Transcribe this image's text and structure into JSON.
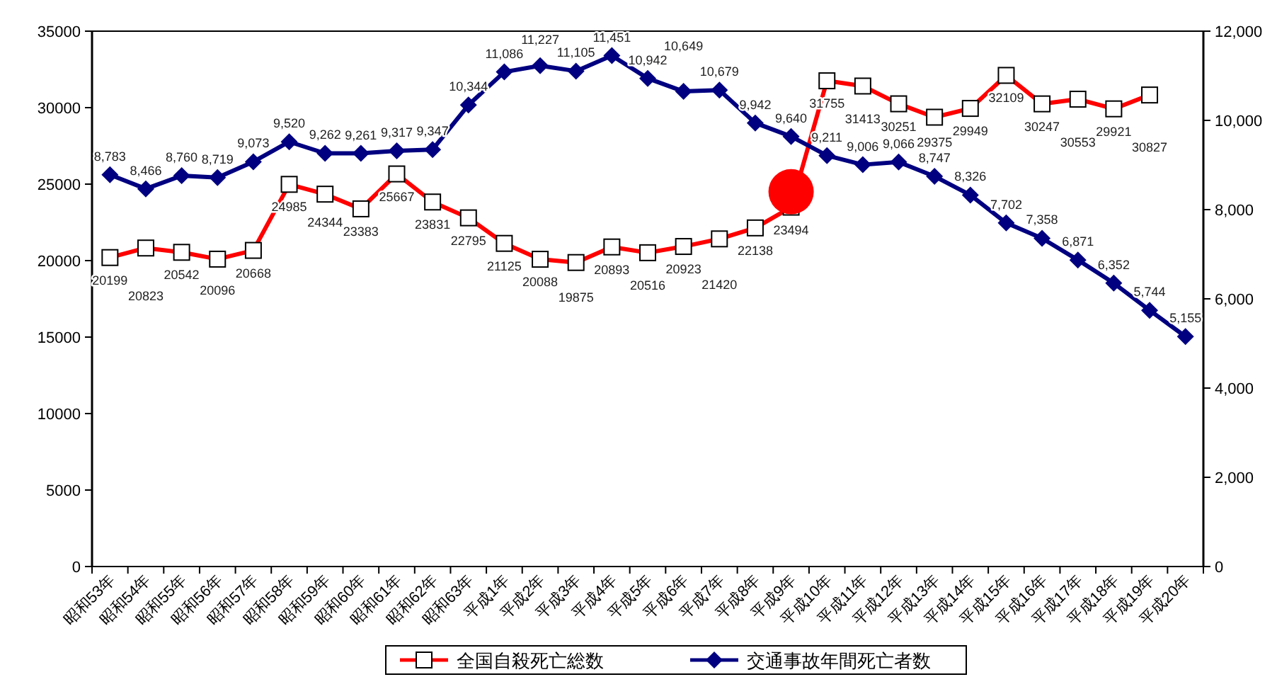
{
  "chart_data": {
    "type": "line",
    "categories": [
      "昭和53年",
      "昭和54年",
      "昭和55年",
      "昭和56年",
      "昭和57年",
      "昭和58年",
      "昭和59年",
      "昭和60年",
      "昭和61年",
      "昭和62年",
      "昭和63年",
      "平成1年",
      "平成2年",
      "平成3年",
      "平成4年",
      "平成5年",
      "平成6年",
      "平成7年",
      "平成8年",
      "平成9年",
      "平成10年",
      "平成11年",
      "平成12年",
      "平成13年",
      "平成14年",
      "平成15年",
      "平成16年",
      "平成17年",
      "平成18年",
      "平成19年",
      "平成20年"
    ],
    "series": [
      {
        "name": "全国自殺死亡総数",
        "color": "#ff0000",
        "axis": "y",
        "marker": "square",
        "values": [
          20199,
          20823,
          20542,
          20096,
          20668,
          24985,
          24344,
          23383,
          25667,
          23831,
          22795,
          21125,
          20088,
          19875,
          20893,
          20516,
          20923,
          21420,
          22138,
          23494,
          31755,
          31413,
          30251,
          29375,
          29949,
          32109,
          30247,
          30553,
          29921,
          30827,
          null
        ],
        "value_labels": [
          "20199",
          "20823",
          "20542",
          "20096",
          "20668",
          "24985",
          "24344",
          "23383",
          "25667",
          "23831",
          "22795",
          "21125",
          "20088",
          "19875",
          "20893",
          "20516",
          "20923",
          "21420",
          "22138",
          "23494",
          "31755",
          "31413",
          "30251",
          "29375",
          "29949",
          "32109",
          "30247",
          "30553",
          "29921",
          "30827",
          null
        ]
      },
      {
        "name": "交通事故年間死亡者数",
        "color": "#000080",
        "axis": "y2",
        "marker": "diamond",
        "values": [
          8783,
          8466,
          8760,
          8719,
          9073,
          9520,
          9262,
          9261,
          9317,
          9347,
          10344,
          11086,
          11227,
          11105,
          11451,
          10942,
          10649,
          10679,
          9942,
          9640,
          9211,
          9006,
          9066,
          8747,
          8326,
          7702,
          7358,
          6871,
          6352,
          5744,
          5155
        ],
        "value_labels": [
          "8,783",
          "8,466",
          "8,760",
          "8,719",
          "9,073",
          "9,520",
          "9,262",
          "9,261",
          "9,317",
          "9,347",
          "10,344",
          "11,086",
          "11,227",
          "11,105",
          "11,451",
          "10,942",
          "10,649",
          "10,679",
          "9,942",
          "9,640",
          "9,211",
          "9,006",
          "9,066",
          "8,747",
          "8,326",
          "7,702",
          "7,358",
          "6,871",
          "6,352",
          "5,744",
          "5,155"
        ]
      },
      {
        "type": "scatter",
        "color": "#ff0000",
        "axis": "y",
        "marker": "circle",
        "x": [
          "平成9年"
        ],
        "values": [
          24500
        ]
      }
    ],
    "ylim": [
      0,
      35000
    ],
    "yticks": [
      0,
      5000,
      10000,
      15000,
      20000,
      25000,
      30000,
      35000
    ],
    "y2lim": [
      0,
      12000
    ],
    "y2ticks": [
      0,
      {
        "value": 2000,
        "label": "2,000"
      },
      {
        "value": 4000,
        "label": "4,000"
      },
      {
        "value": 6000,
        "label": "6,000"
      },
      {
        "value": 8000,
        "label": "8,000"
      },
      {
        "value": 10000,
        "label": "10,000"
      },
      {
        "value": 12000,
        "label": "12,000"
      }
    ],
    "legend": "bottom"
  }
}
